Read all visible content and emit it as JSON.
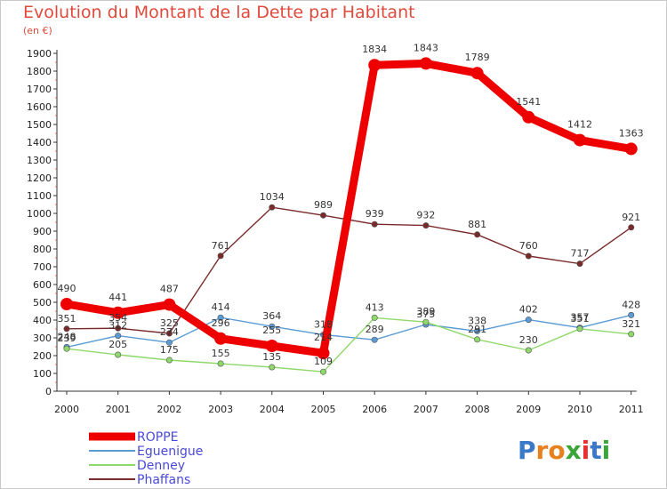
{
  "title": "Evolution du Montant de la Dette par Habitant",
  "subtitle": "(en €)",
  "logo": "Proxiti",
  "chart_data": {
    "type": "line",
    "x": [
      "2000",
      "2001",
      "2002",
      "2003",
      "2004",
      "2005",
      "2006",
      "2007",
      "2008",
      "2009",
      "2010",
      "2011"
    ],
    "ylim": [
      0,
      1900
    ],
    "yticks": [
      0,
      100,
      200,
      300,
      400,
      500,
      600,
      700,
      800,
      900,
      1000,
      1100,
      1200,
      1300,
      1400,
      1500,
      1600,
      1700,
      1800,
      1900
    ],
    "grid": false,
    "legend_position": "bottom-left",
    "series": [
      {
        "name": "ROPPE",
        "color": "#ee0000",
        "values": [
          490,
          441,
          487,
          296,
          255,
          214,
          1834,
          1843,
          1789,
          1541,
          1412,
          1363
        ]
      },
      {
        "name": "Eguenigue",
        "color": "#5b9bd5",
        "values": [
          248,
          312,
          274,
          414,
          364,
          318,
          289,
          375,
          338,
          402,
          357,
          428
        ]
      },
      {
        "name": "Denney",
        "color": "#8fd86a",
        "values": [
          239,
          205,
          175,
          155,
          135,
          109,
          413,
          389,
          291,
          230,
          351,
          321
        ]
      },
      {
        "name": "Phaffans",
        "color": "#7a2a2a",
        "values": [
          351,
          354,
          325,
          761,
          1034,
          989,
          939,
          932,
          881,
          760,
          717,
          921
        ]
      }
    ]
  }
}
